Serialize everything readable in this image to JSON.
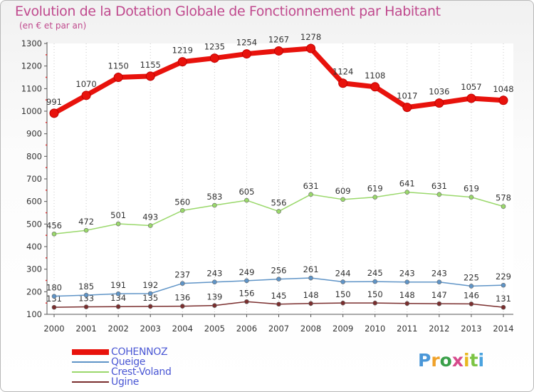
{
  "chart_data": {
    "type": "line",
    "title": "Evolution de la Dotation Globale de Fonctionnement par Habitant",
    "subtitle": "(en € et par an)",
    "xlabel": "",
    "ylabel": "",
    "x": [
      "2000",
      "2001",
      "2002",
      "2003",
      "2004",
      "2005",
      "2006",
      "2007",
      "2008",
      "2009",
      "2010",
      "2011",
      "2012",
      "2013",
      "2014"
    ],
    "ylim": [
      100,
      1300
    ],
    "yticks": [
      100,
      200,
      300,
      400,
      500,
      600,
      700,
      800,
      900,
      1000,
      1100,
      1200,
      1300
    ],
    "grid": "vertical-dotted",
    "legend_position": "bottom-left",
    "series": [
      {
        "name": "COHENNOZ",
        "color": "#e8120c",
        "values": [
          991,
          1070,
          1150,
          1155,
          1219,
          1235,
          1254,
          1267,
          1278,
          1124,
          1108,
          1017,
          1036,
          1057,
          1048
        ]
      },
      {
        "name": "Queige",
        "color": "#5f94c7",
        "values": [
          180,
          185,
          191,
          192,
          237,
          243,
          249,
          256,
          261,
          244,
          245,
          243,
          243,
          225,
          229
        ]
      },
      {
        "name": "Crest-Voland",
        "color": "#9ad86b",
        "values": [
          456,
          472,
          501,
          493,
          560,
          583,
          605,
          556,
          631,
          609,
          619,
          641,
          631,
          619,
          578
        ]
      },
      {
        "name": "Ugine",
        "color": "#7a2e2e",
        "values": [
          131,
          133,
          134,
          135,
          136,
          139,
          156,
          145,
          148,
          150,
          150,
          148,
          147,
          146,
          131
        ]
      }
    ]
  },
  "logo": {
    "text": "Proxiti",
    "colors": [
      "#4a97d8",
      "#f0a22a",
      "#3aa04a",
      "#d64a8c",
      "#e8b820",
      "#7cc444",
      "#4aa3df"
    ]
  }
}
